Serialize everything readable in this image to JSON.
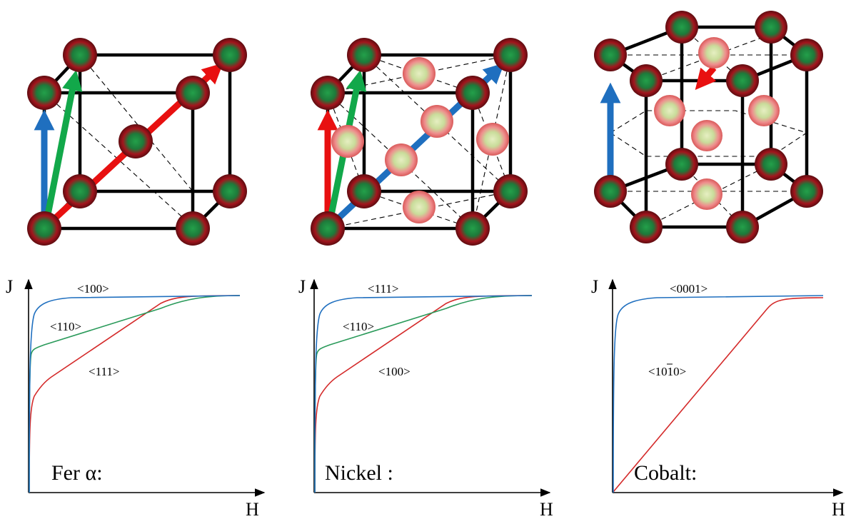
{
  "colors": {
    "blue": "#1f6fbf",
    "green": "#12a84a",
    "red": "#e81010",
    "atom_dark": "#a3151d",
    "atom_core": "#1d7a3a",
    "atom_light": "#ef8d8d",
    "atom_light_core": "#cfe0a6"
  },
  "panels": [
    {
      "title": "Fer α:",
      "y_label": "J",
      "x_label": "H",
      "crystal": "bcc",
      "curves": [
        {
          "label": "<100>",
          "color": "blue"
        },
        {
          "label": "<110>",
          "color": "green"
        },
        {
          "label": "<111>",
          "color": "red"
        }
      ]
    },
    {
      "title": "Nickel :",
      "y_label": "J",
      "x_label": "H",
      "crystal": "fcc",
      "curves": [
        {
          "label": "<111>",
          "color": "blue"
        },
        {
          "label": "<110>",
          "color": "green"
        },
        {
          "label": "<100>",
          "color": "red"
        }
      ]
    },
    {
      "title": "Cobalt:",
      "y_label": "J",
      "x_label": "H",
      "crystal": "hcp",
      "curves": [
        {
          "label": "<0001>",
          "color": "blue"
        },
        {
          "label": "<1010>",
          "color": "red"
        }
      ]
    }
  ]
}
